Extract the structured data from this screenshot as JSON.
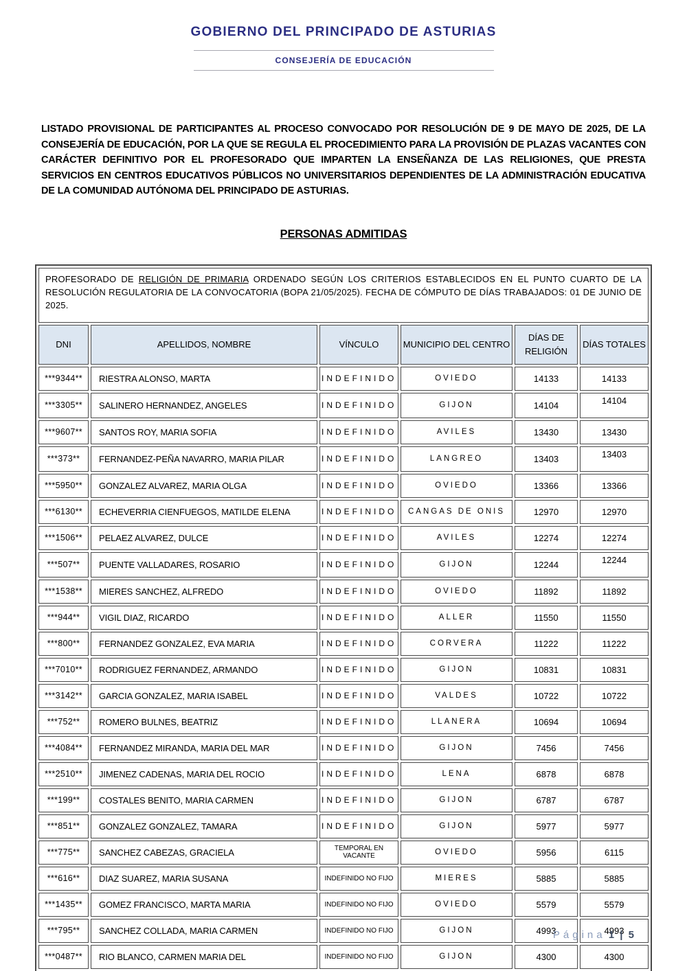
{
  "header": {
    "title": "GOBIERNO DEL PRINCIPADO DE ASTURIAS",
    "subtitle": "CONSEJERÍA DE EDUCACIÓN"
  },
  "intro_paragraph": "LISTADO PROVISIONAL DE PARTICIPANTES AL PROCESO CONVOCADO POR RESOLUCIÓN DE 9 DE MAYO DE 2025, DE LA CONSEJERÍA DE EDUCACIÓN, POR LA QUE SE REGULA EL PROCEDIMIENTO PARA LA PROVISIÓN DE PLAZAS VACANTES CON CARÁCTER DEFINITIVO POR EL PROFESORADO QUE IMPARTEN LA ENSEÑANZA DE LAS RELIGIONES, QUE PRESTA SERVICIOS EN CENTROS EDUCATIVOS PÚBLICOS NO UNIVERSITARIOS DEPENDIENTES DE LA ADMINISTRACIÓN EDUCATIVA DE LA COMUNIDAD AUTÓNOMA DEL PRINCIPADO DE ASTURIAS.",
  "section_title": "PERSONAS ADMITIDAS",
  "table": {
    "caption": {
      "before": "PROFESORADO DE ",
      "underlined": "RELIGIÓN DE PRIMARIA",
      "after": " ORDENADO SEGÚN LOS CRITERIOS ESTABLECIDOS EN EL PUNTO CUARTO DE LA RESOLUCIÓN REGULATORIA DE LA CONVOCATORIA (BOPA 21/05/2025). FECHA DE CÓMPUTO DE DÍAS TRABAJADOS: 01 DE JUNIO DE 2025."
    },
    "columns": {
      "dni": "DNI",
      "nombre": "APELLIDOS, NOMBRE",
      "vinculo": "VÍNCULO",
      "municipio": "MUNICIPIO DEL CENTRO",
      "dias_religion": "DÍAS DE RELIGIÓN",
      "dias_totales": "DÍAS TOTALES"
    },
    "rows": [
      {
        "dni": "***9344**",
        "nombre": "RIESTRA ALONSO, MARTA",
        "vinculo": "INDEFINIDO",
        "municipio": "OVIEDO",
        "dias_religion": "14133",
        "dias_totales": "14133",
        "totales_align": "middle"
      },
      {
        "dni": "***3305**",
        "nombre": "SALINERO HERNANDEZ, ANGELES",
        "vinculo": "INDEFINIDO",
        "municipio": "GIJON",
        "dias_religion": "14104",
        "dias_totales": "14104",
        "totales_align": "top"
      },
      {
        "dni": "***9607**",
        "nombre": "SANTOS ROY, MARIA SOFIA",
        "vinculo": "INDEFINIDO",
        "municipio": "AVILES",
        "dias_religion": "13430",
        "dias_totales": "13430",
        "totales_align": "middle"
      },
      {
        "dni": "***373**",
        "nombre": "FERNANDEZ-PEÑA NAVARRO, MARIA PILAR",
        "vinculo": "INDEFINIDO",
        "municipio": "LANGREO",
        "dias_religion": "13403",
        "dias_totales": "13403",
        "totales_align": "top"
      },
      {
        "dni": "***5950**",
        "nombre": "GONZALEZ ALVAREZ, MARIA OLGA",
        "vinculo": "INDEFINIDO",
        "municipio": "OVIEDO",
        "dias_religion": "13366",
        "dias_totales": "13366",
        "totales_align": "middle"
      },
      {
        "dni": "***6130**",
        "nombre": "ECHEVERRIA CIENFUEGOS, MATILDE ELENA",
        "vinculo": "INDEFINIDO",
        "municipio": "CANGAS DE ONIS",
        "dias_religion": "12970",
        "dias_totales": "12970",
        "totales_align": "middle"
      },
      {
        "dni": "***1506**",
        "nombre": "PELAEZ ALVAREZ, DULCE",
        "vinculo": "INDEFINIDO",
        "municipio": "AVILES",
        "dias_religion": "12274",
        "dias_totales": "12274",
        "totales_align": "middle"
      },
      {
        "dni": "***507**",
        "nombre": "PUENTE VALLADARES, ROSARIO",
        "vinculo": "INDEFINIDO",
        "municipio": "GIJON",
        "dias_religion": "12244",
        "dias_totales": "12244",
        "totales_align": "top"
      },
      {
        "dni": "***1538**",
        "nombre": "MIERES SANCHEZ, ALFREDO",
        "vinculo": "INDEFINIDO",
        "municipio": "OVIEDO",
        "dias_religion": "11892",
        "dias_totales": "11892",
        "totales_align": "middle"
      },
      {
        "dni": "***944**",
        "nombre": "VIGIL DIAZ, RICARDO",
        "vinculo": "INDEFINIDO",
        "municipio": "ALLER",
        "dias_religion": "11550",
        "dias_totales": "11550",
        "totales_align": "middle"
      },
      {
        "dni": "***800**",
        "nombre": "FERNANDEZ GONZALEZ, EVA MARIA",
        "vinculo": "INDEFINIDO",
        "municipio": "CORVERA",
        "dias_religion": "11222",
        "dias_totales": "11222",
        "totales_align": "middle"
      },
      {
        "dni": "***7010**",
        "nombre": "RODRIGUEZ FERNANDEZ, ARMANDO",
        "vinculo": "INDEFINIDO",
        "municipio": "GIJON",
        "dias_religion": "10831",
        "dias_totales": "10831",
        "totales_align": "middle"
      },
      {
        "dni": "***3142**",
        "nombre": "GARCIA GONZALEZ, MARIA ISABEL",
        "vinculo": "INDEFINIDO",
        "municipio": "VALDES",
        "dias_religion": "10722",
        "dias_totales": "10722",
        "totales_align": "middle"
      },
      {
        "dni": "***752**",
        "nombre": "ROMERO BULNES, BEATRIZ",
        "vinculo": "INDEFINIDO",
        "municipio": "LLANERA",
        "dias_religion": "10694",
        "dias_totales": "10694",
        "totales_align": "middle"
      },
      {
        "dni": "***4084**",
        "nombre": "FERNANDEZ MIRANDA, MARIA DEL MAR",
        "vinculo": "INDEFINIDO",
        "municipio": "GIJON",
        "dias_religion": "7456",
        "dias_totales": "7456",
        "totales_align": "middle"
      },
      {
        "dni": "***2510**",
        "nombre": "JIMENEZ CADENAS, MARIA DEL ROCIO",
        "vinculo": "INDEFINIDO",
        "municipio": "LENA",
        "dias_religion": "6878",
        "dias_totales": "6878",
        "totales_align": "middle"
      },
      {
        "dni": "***199**",
        "nombre": "COSTALES BENITO, MARIA CARMEN",
        "vinculo": "INDEFINIDO",
        "municipio": "GIJON",
        "dias_religion": "6787",
        "dias_totales": "6787",
        "totales_align": "middle"
      },
      {
        "dni": "***851**",
        "nombre": "GONZALEZ GONZALEZ, TAMARA",
        "vinculo": "INDEFINIDO",
        "municipio": "GIJON",
        "dias_religion": "5977",
        "dias_totales": "5977",
        "totales_align": "middle"
      },
      {
        "dni": "***775**",
        "nombre": "SANCHEZ CABEZAS, GRACIELA",
        "vinculo": "TEMPORAL EN VACANTE",
        "municipio": "OVIEDO",
        "dias_religion": "5956",
        "dias_totales": "6115",
        "totales_align": "middle"
      },
      {
        "dni": "***616**",
        "nombre": "DIAZ SUAREZ, MARIA SUSANA",
        "vinculo": "INDEFINIDO NO FIJO",
        "municipio": "MIERES",
        "dias_religion": "5885",
        "dias_totales": "5885",
        "totales_align": "middle"
      },
      {
        "dni": "***1435**",
        "nombre": "GOMEZ FRANCISCO, MARTA MARIA",
        "vinculo": "INDEFINIDO NO FIJO",
        "municipio": "OVIEDO",
        "dias_religion": "5579",
        "dias_totales": "5579",
        "totales_align": "middle"
      },
      {
        "dni": "***795**",
        "nombre": "SANCHEZ COLLADA, MARIA CARMEN",
        "vinculo": "INDEFINIDO NO FIJO",
        "municipio": "GIJON",
        "dias_religion": "4993",
        "dias_totales": "4993",
        "totales_align": "middle"
      },
      {
        "dni": "***0487**",
        "nombre": "RIO BLANCO, CARMEN MARIA DEL",
        "vinculo": "INDEFINIDO NO FIJO",
        "municipio": "GIJON",
        "dias_religion": "4300",
        "dias_totales": "4300",
        "totales_align": "middle"
      }
    ]
  },
  "footer": {
    "page_label": "Página",
    "page_number": "1 | 5"
  },
  "colors": {
    "accent_navy": "#2b2e83",
    "table_header_bg": "#dce6f1",
    "table_border": "#4a4a4a",
    "footer_muted": "#8b9cba",
    "footer_dark": "#3f4d63",
    "header_rule": "#a8a8b0"
  }
}
